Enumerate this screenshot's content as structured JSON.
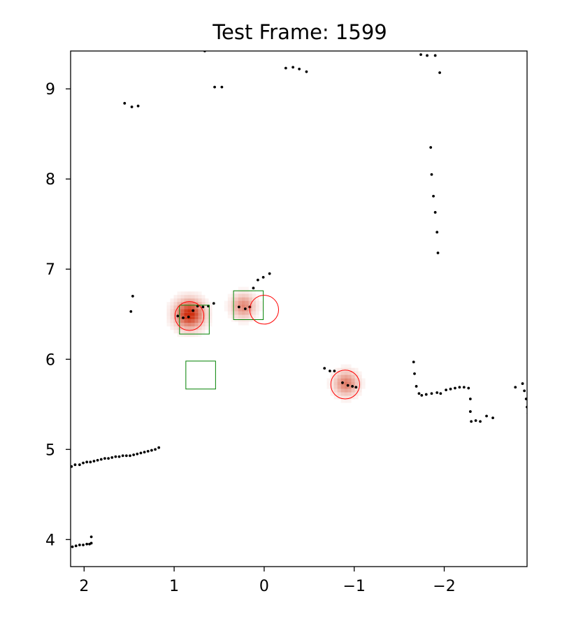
{
  "chart_data": {
    "type": "scatter",
    "title": "Test Frame: 1599",
    "xlabel": "",
    "ylabel": "",
    "xlim": [
      2.15,
      -2.92
    ],
    "ylim": [
      3.7,
      9.42
    ],
    "x_inverted": true,
    "x_ticks": [
      2,
      1,
      0,
      -1,
      -2
    ],
    "x_tick_labels": [
      "2",
      "1",
      "0",
      "−1",
      "−2"
    ],
    "y_ticks": [
      4,
      5,
      6,
      7,
      8,
      9
    ],
    "y_tick_labels": [
      "4",
      "5",
      "6",
      "7",
      "8",
      "9"
    ],
    "grid": false,
    "colors": {
      "points": "#000000",
      "boxes": "#008000",
      "circles": "#ff0000",
      "heat": "#cc2200"
    },
    "series": [
      {
        "kind": "points",
        "points": [
          [
            2.14,
            4.81
          ],
          [
            2.1,
            4.83
          ],
          [
            2.05,
            4.83
          ],
          [
            2.01,
            4.85
          ],
          [
            1.97,
            4.86
          ],
          [
            1.93,
            4.86
          ],
          [
            1.89,
            4.87
          ],
          [
            1.85,
            4.88
          ],
          [
            1.81,
            4.89
          ],
          [
            1.77,
            4.9
          ],
          [
            1.73,
            4.9
          ],
          [
            1.69,
            4.91
          ],
          [
            1.65,
            4.92
          ],
          [
            1.61,
            4.92
          ],
          [
            1.57,
            4.93
          ],
          [
            1.53,
            4.93
          ],
          [
            1.49,
            4.93
          ],
          [
            1.45,
            4.94
          ],
          [
            1.41,
            4.95
          ],
          [
            1.37,
            4.96
          ],
          [
            1.33,
            4.97
          ],
          [
            1.29,
            4.98
          ],
          [
            1.25,
            4.99
          ],
          [
            1.21,
            5.0
          ],
          [
            1.17,
            5.02
          ],
          [
            2.13,
            3.92
          ],
          [
            2.09,
            3.93
          ],
          [
            2.05,
            3.94
          ],
          [
            2.01,
            3.94
          ],
          [
            1.97,
            3.95
          ],
          [
            1.94,
            3.95
          ],
          [
            1.92,
            3.96
          ],
          [
            1.92,
            4.03
          ],
          [
            1.55,
            8.84
          ],
          [
            1.47,
            8.8
          ],
          [
            1.4,
            8.81
          ],
          [
            0.66,
            9.42
          ],
          [
            0.55,
            9.02
          ],
          [
            0.47,
            9.02
          ],
          [
            -0.24,
            9.23
          ],
          [
            -0.32,
            9.24
          ],
          [
            -0.39,
            9.22
          ],
          [
            -0.47,
            9.19
          ],
          [
            -1.74,
            9.38
          ],
          [
            -1.81,
            9.37
          ],
          [
            -1.9,
            9.37
          ],
          [
            -1.95,
            9.18
          ],
          [
            -1.85,
            8.35
          ],
          [
            -1.86,
            8.05
          ],
          [
            -1.88,
            7.81
          ],
          [
            -1.9,
            7.63
          ],
          [
            -1.92,
            7.41
          ],
          [
            -1.93,
            7.18
          ],
          [
            1.46,
            6.7
          ],
          [
            1.48,
            6.53
          ],
          [
            0.96,
            6.48
          ],
          [
            0.9,
            6.46
          ],
          [
            0.84,
            6.47
          ],
          [
            0.79,
            6.54
          ],
          [
            0.74,
            6.59
          ],
          [
            0.68,
            6.58
          ],
          [
            0.62,
            6.59
          ],
          [
            0.56,
            6.62
          ],
          [
            0.28,
            6.58
          ],
          [
            0.21,
            6.56
          ],
          [
            0.16,
            6.58
          ],
          [
            0.12,
            6.79
          ],
          [
            0.07,
            6.88
          ],
          [
            0.01,
            6.91
          ],
          [
            -0.06,
            6.95
          ],
          [
            -0.67,
            5.9
          ],
          [
            -0.73,
            5.87
          ],
          [
            -0.78,
            5.87
          ],
          [
            -0.87,
            5.74
          ],
          [
            -0.93,
            5.71
          ],
          [
            -0.98,
            5.7
          ],
          [
            -1.02,
            5.69
          ],
          [
            -1.66,
            5.97
          ],
          [
            -1.67,
            5.84
          ],
          [
            -1.69,
            5.7
          ],
          [
            -1.72,
            5.62
          ],
          [
            -1.75,
            5.6
          ],
          [
            -1.8,
            5.61
          ],
          [
            -1.86,
            5.62
          ],
          [
            -1.92,
            5.63
          ],
          [
            -1.96,
            5.62
          ],
          [
            -2.02,
            5.66
          ],
          [
            -2.07,
            5.67
          ],
          [
            -2.12,
            5.68
          ],
          [
            -2.17,
            5.69
          ],
          [
            -2.22,
            5.69
          ],
          [
            -2.27,
            5.68
          ],
          [
            -2.29,
            5.56
          ],
          [
            -2.29,
            5.42
          ],
          [
            -2.3,
            5.31
          ],
          [
            -2.35,
            5.32
          ],
          [
            -2.4,
            5.31
          ],
          [
            -2.47,
            5.37
          ],
          [
            -2.54,
            5.35
          ],
          [
            -2.79,
            5.69
          ],
          [
            -2.87,
            5.73
          ],
          [
            -2.89,
            5.65
          ],
          [
            -2.91,
            5.56
          ],
          [
            -2.92,
            5.47
          ],
          [
            -2.93,
            5.4
          ]
        ]
      },
      {
        "kind": "heat",
        "blobs": [
          {
            "x": 0.83,
            "y": 6.5,
            "intensity": 1.0
          },
          {
            "x": 0.23,
            "y": 6.59,
            "intensity": 0.55
          },
          {
            "x": -0.91,
            "y": 5.73,
            "intensity": 0.6
          }
        ]
      },
      {
        "kind": "boxes",
        "boxes": [
          {
            "x0": 0.94,
            "x1": 0.61,
            "y0": 6.28,
            "y1": 6.6
          },
          {
            "x0": 0.34,
            "x1": 0.01,
            "y0": 6.44,
            "y1": 6.76
          },
          {
            "x0": 0.54,
            "x1": 0.87,
            "y0": 5.67,
            "y1": 5.98
          }
        ]
      },
      {
        "kind": "circles",
        "circles": [
          {
            "x": 0.83,
            "y": 6.48,
            "r": 0.16
          },
          {
            "x": 0.0,
            "y": 6.55,
            "r": 0.16
          },
          {
            "x": -0.9,
            "y": 5.72,
            "r": 0.16
          }
        ]
      }
    ]
  }
}
